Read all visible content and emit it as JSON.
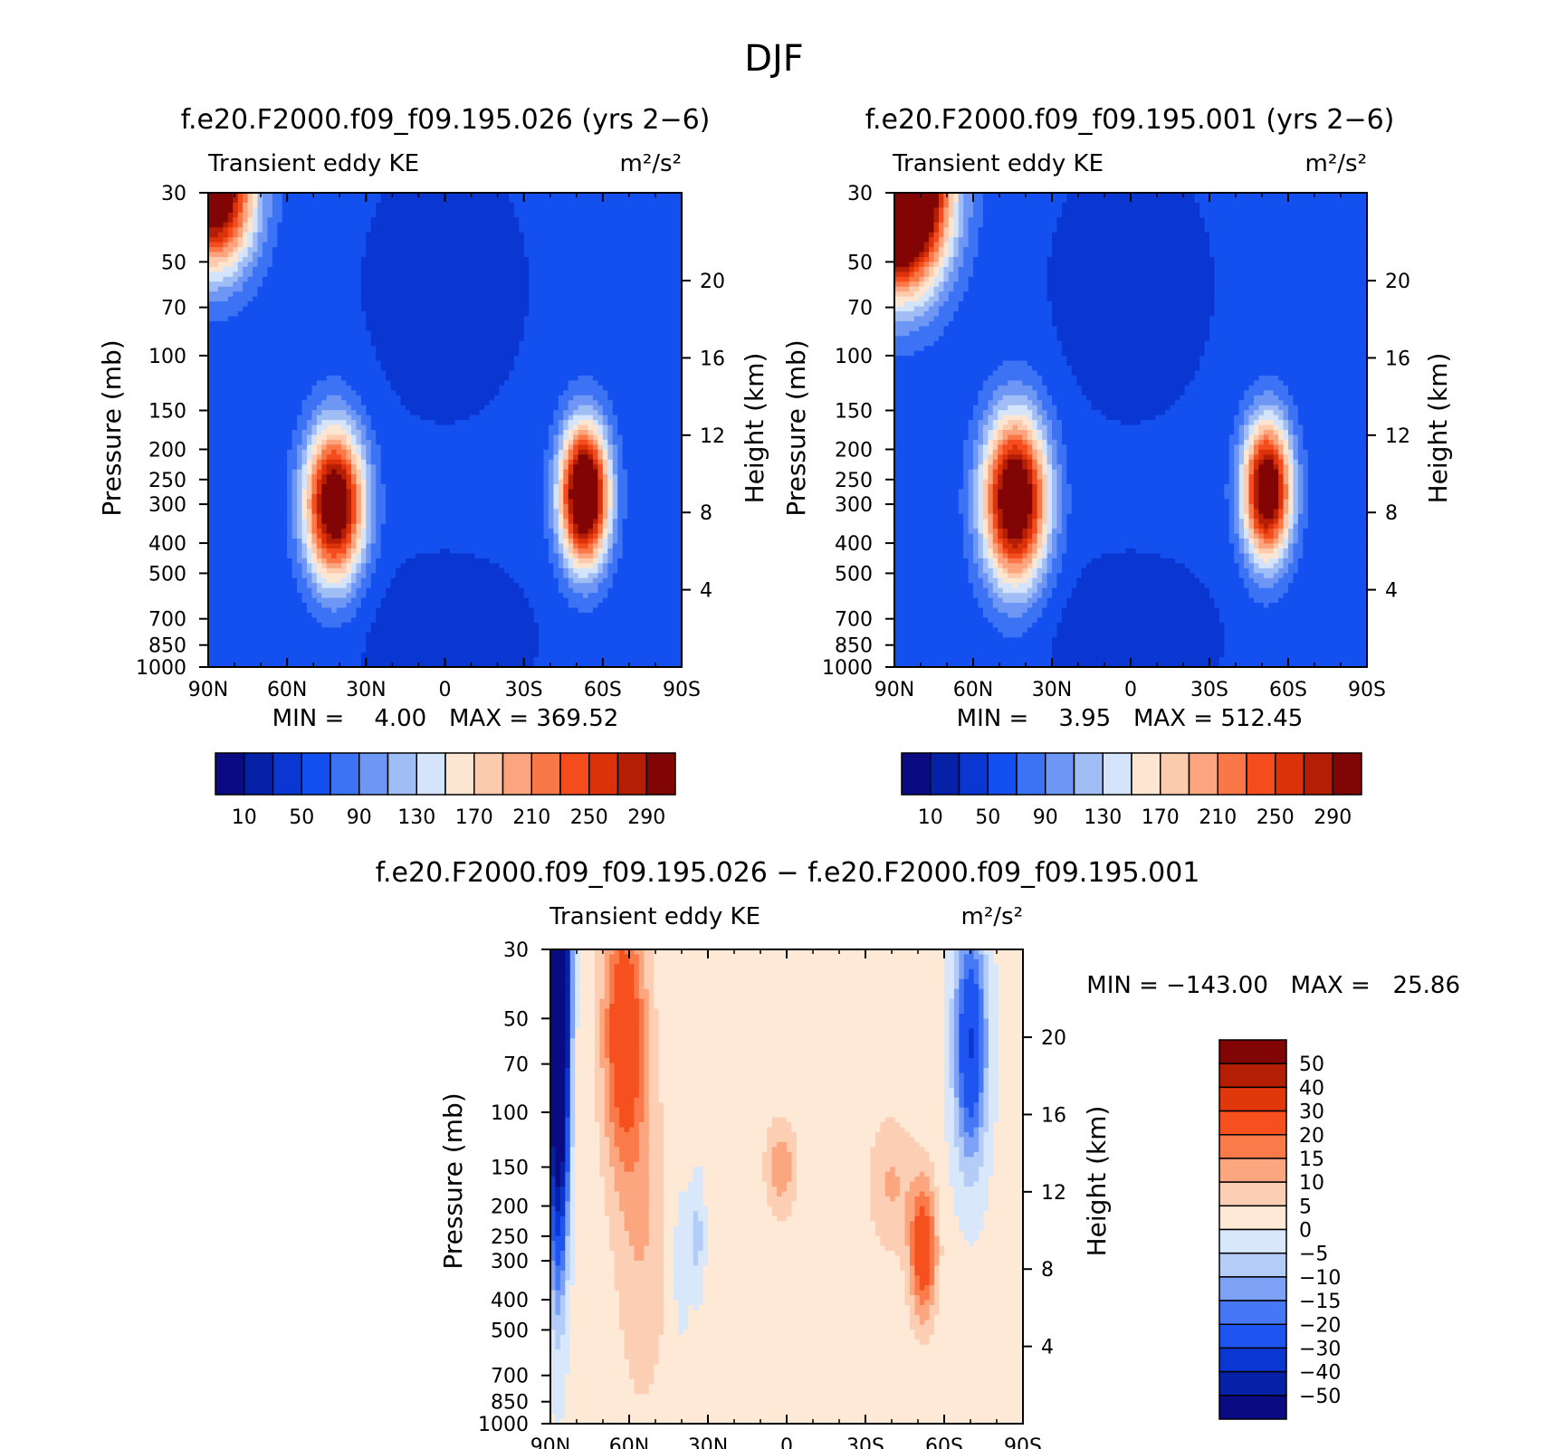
{
  "figure": {
    "title": "DJF"
  },
  "colors": {
    "kePalette": [
      "#0a0a82",
      "#0521a8",
      "#0a37d2",
      "#1450f0",
      "#3c73f5",
      "#6e96f5",
      "#a0bdf5",
      "#d4e4fa",
      "#fce6d2",
      "#fccaac",
      "#fca47e",
      "#fa7848",
      "#f54c1e",
      "#dc320a",
      "#b41e05",
      "#820505"
    ],
    "diffPalette": [
      "#0a0a82",
      "#0521a8",
      "#0a37d2",
      "#1e55f0",
      "#4678f5",
      "#7da2f5",
      "#b4cdf8",
      "#d8e8fa",
      "#fde9d6",
      "#fccfb4",
      "#fca680",
      "#fa7a4a",
      "#f5501e",
      "#e0380a",
      "#b41e05",
      "#820505"
    ]
  },
  "panels": [
    {
      "title": "f.e20.F2000.f09_f09.195.026 (yrs 2−6)",
      "left_label": "Transient eddy KE",
      "right_label": "m²/s²",
      "ylabel": "Pressure (mb)",
      "y2label": "Height (km)",
      "minmax": "MIN =    4.00   MAX = 369.52"
    },
    {
      "title": "f.e20.F2000.f09_f09.195.001 (yrs 2−6)",
      "left_label": "Transient eddy KE",
      "right_label": "m²/s²",
      "ylabel": "Pressure (mb)",
      "y2label": "Height (km)",
      "minmax": "MIN =    3.95   MAX = 512.45"
    },
    {
      "title": "f.e20.F2000.f09_f09.195.026 − f.e20.F2000.f09_f09.195.001",
      "left_label": "Transient eddy KE",
      "right_label": "m²/s²",
      "ylabel": "Pressure (mb)",
      "y2label": "Height (km)",
      "minmax": "MIN = −143.00   MAX =   25.86"
    }
  ],
  "chart_data": [
    {
      "type": "heatmap",
      "title": "f.e20.F2000.f09_f09.195.026 (yrs 2−6)",
      "x_tick_labels": [
        "90N",
        "60N",
        "30N",
        "0",
        "30S",
        "60S",
        "90S"
      ],
      "x_ticks": [
        90,
        60,
        30,
        0,
        -30,
        -60,
        -90
      ],
      "y_tick_labels": [
        "30",
        "50",
        "70",
        "100",
        "150",
        "200",
        "250",
        "300",
        "400",
        "500",
        "700",
        "850",
        "1000"
      ],
      "y_ticks": [
        30,
        50,
        70,
        100,
        150,
        200,
        250,
        300,
        400,
        500,
        700,
        850,
        1000
      ],
      "y2_tick_labels": [
        "20",
        "16",
        "12",
        "8",
        "4"
      ],
      "y2_ticks": [
        20,
        16,
        12,
        8,
        4
      ],
      "xlim": [
        90,
        -90
      ],
      "ylim": [
        1000,
        30
      ],
      "y_scale": "log",
      "colorbar_labels": [
        "10",
        "50",
        "90",
        "130",
        "170",
        "210",
        "250",
        "290"
      ],
      "levels": [
        10,
        30,
        50,
        70,
        90,
        110,
        130,
        150,
        170,
        190,
        210,
        230,
        250,
        270,
        290
      ],
      "features": [
        {
          "lat": 42,
          "p": 300,
          "peak": 330,
          "wlat": 11,
          "wlnp": 0.55
        },
        {
          "lat": -53,
          "p": 280,
          "peak": 369.52,
          "wlat": 9,
          "wlnp": 0.5
        },
        {
          "lat": 88,
          "p": 30,
          "peak": 340,
          "wlat": 15,
          "wlnp": 0.55
        }
      ],
      "min": 4.0,
      "max": 369.52
    },
    {
      "type": "heatmap",
      "title": "f.e20.F2000.f09_f09.195.001 (yrs 2−6)",
      "x_tick_labels": [
        "90N",
        "60N",
        "30N",
        "0",
        "30S",
        "60S",
        "90S"
      ],
      "x_ticks": [
        90,
        60,
        30,
        0,
        -30,
        -60,
        -90
      ],
      "y_tick_labels": [
        "30",
        "50",
        "70",
        "100",
        "150",
        "200",
        "250",
        "300",
        "400",
        "500",
        "700",
        "850",
        "1000"
      ],
      "y_ticks": [
        30,
        50,
        70,
        100,
        150,
        200,
        250,
        300,
        400,
        500,
        700,
        850,
        1000
      ],
      "y2_tick_labels": [
        "20",
        "16",
        "12",
        "8",
        "4"
      ],
      "y2_ticks": [
        20,
        16,
        12,
        8,
        4
      ],
      "xlim": [
        90,
        -90
      ],
      "ylim": [
        1000,
        30
      ],
      "y_scale": "log",
      "colorbar_labels": [
        "10",
        "50",
        "90",
        "130",
        "170",
        "210",
        "250",
        "290"
      ],
      "levels": [
        10,
        30,
        50,
        70,
        90,
        110,
        130,
        150,
        170,
        190,
        210,
        230,
        250,
        270,
        290
      ],
      "features": [
        {
          "lat": 44,
          "p": 290,
          "peak": 340,
          "wlat": 12,
          "wlnp": 0.6
        },
        {
          "lat": -52,
          "p": 270,
          "peak": 330,
          "wlat": 9,
          "wlnp": 0.5
        },
        {
          "lat": 88,
          "p": 30,
          "peak": 512.45,
          "wlat": 17,
          "wlnp": 0.65
        }
      ],
      "min": 3.95,
      "max": 512.45
    },
    {
      "type": "heatmap",
      "title": "f.e20.F2000.f09_f09.195.026 − f.e20.F2000.f09_f09.195.001",
      "x_tick_labels": [
        "90N",
        "60N",
        "30N",
        "0",
        "30S",
        "60S",
        "90S"
      ],
      "x_ticks": [
        90,
        60,
        30,
        0,
        -30,
        -60,
        -90
      ],
      "y_tick_labels": [
        "30",
        "50",
        "70",
        "100",
        "150",
        "200",
        "250",
        "300",
        "400",
        "500",
        "700",
        "850",
        "1000"
      ],
      "y_ticks": [
        30,
        50,
        70,
        100,
        150,
        200,
        250,
        300,
        400,
        500,
        700,
        850,
        1000
      ],
      "y2_tick_labels": [
        "20",
        "16",
        "12",
        "8",
        "4"
      ],
      "y2_ticks": [
        20,
        16,
        12,
        8,
        4
      ],
      "xlim": [
        90,
        -90
      ],
      "ylim": [
        1000,
        30
      ],
      "y_scale": "log",
      "colorbar_labels": [
        "50",
        "40",
        "30",
        "20",
        "15",
        "10",
        "5",
        "0",
        "−5",
        "−10",
        "−15",
        "−20",
        "−30",
        "−40",
        "−50"
      ],
      "levels": [
        -50,
        -40,
        -30,
        -20,
        -15,
        -10,
        -5,
        0,
        5,
        10,
        15,
        20,
        30,
        40,
        50
      ],
      "features": [
        {
          "lat": 87,
          "p": 35,
          "peak": -143.0,
          "wlat": 3.5,
          "wlnp": 1.6
        },
        {
          "lat": 62,
          "p": 55,
          "peak": 26,
          "wlat": 8,
          "wlnp": 1.0
        },
        {
          "lat": 55,
          "p": 250,
          "peak": 8,
          "wlat": 10,
          "wlnp": 1.3
        },
        {
          "lat": -52,
          "p": 280,
          "peak": 25.86,
          "wlat": 5,
          "wlnp": 0.5
        },
        {
          "lat": -40,
          "p": 170,
          "peak": 9,
          "wlat": 9,
          "wlnp": 0.5
        },
        {
          "lat": 2,
          "p": 150,
          "peak": 12,
          "wlat": 6,
          "wlnp": 0.35
        },
        {
          "lat": -70,
          "p": 60,
          "peak": -32,
          "wlat": 6,
          "wlnp": 0.85
        },
        {
          "lat": 40,
          "p": 300,
          "peak": -7,
          "wlat": 3,
          "wlnp": 0.5
        },
        {
          "lat": 34,
          "p": 250,
          "peak": -9,
          "wlat": 2.5,
          "wlnp": 0.4
        }
      ],
      "background": 1.5,
      "min": -143.0,
      "max": 25.86
    }
  ]
}
